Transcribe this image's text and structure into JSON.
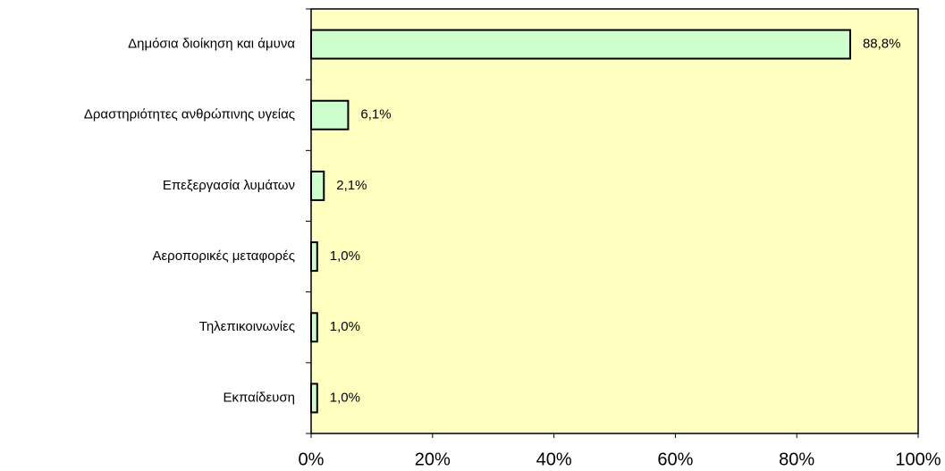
{
  "chart_data": {
    "type": "bar",
    "orientation": "horizontal",
    "categories": [
      "Δημόσια διοίκηση και άμυνα",
      "Δραστηριότητες ανθρώπινης υγείας",
      "Επεξεργασία λυμάτων",
      "Αεροπορικές μεταφορές",
      "Τηλεπικοινωνίες",
      "Εκπαίδευση"
    ],
    "values": [
      88.8,
      6.1,
      2.1,
      1.0,
      1.0,
      1.0
    ],
    "value_labels": [
      "88,8%",
      "6,1%",
      "2,1%",
      "1,0%",
      "1,0%",
      "1,0%"
    ],
    "color": "#ccffcc",
    "background": "#ffffc0",
    "xlim": [
      0,
      100
    ],
    "xticks": [
      {
        "value": 0,
        "label": "0%"
      },
      {
        "value": 20,
        "label": "20%"
      },
      {
        "value": 40,
        "label": "40%"
      },
      {
        "value": 60,
        "label": "60%"
      },
      {
        "value": 80,
        "label": "80%"
      },
      {
        "value": 100,
        "label": "100%"
      }
    ]
  }
}
